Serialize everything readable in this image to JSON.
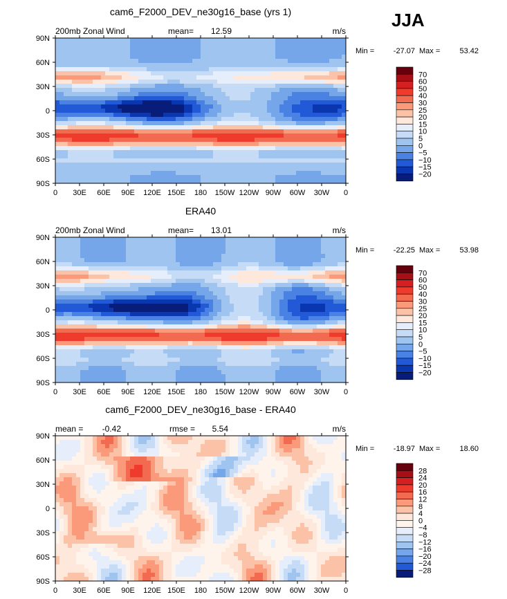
{
  "season": "JJA",
  "chart_data": [
    {
      "type": "heatmap",
      "title": "cam6_F2000_DEV_ne30g16_base (yrs 1)",
      "left_label": "200mb Zonal Wind",
      "center_label": "mean=",
      "center_value": "12.59",
      "units": "m/s",
      "stats": {
        "min_label": "Min =",
        "min": "-27.07",
        "max_label": "Max =",
        "max": "53.42"
      },
      "x_ticks": [
        "0",
        "30E",
        "60E",
        "90E",
        "120E",
        "150E",
        "180",
        "150W",
        "120W",
        "90W",
        "60W",
        "30W",
        "0"
      ],
      "y_ticks": [
        "90N",
        "60N",
        "30N",
        "0",
        "30S",
        "60S",
        "90S"
      ],
      "colorbar": {
        "labels": [
          "70",
          "60",
          "50",
          "40",
          "30",
          "25",
          "20",
          "15",
          "10",
          "5",
          "0",
          "−5",
          "−10",
          "−15",
          "−20"
        ],
        "colors": [
          "#67000d",
          "#a50f15",
          "#d42020",
          "#ef3b2c",
          "#f26a4f",
          "#fa9a7a",
          "#fcc2a8",
          "#fde8db",
          "#e5eefa",
          "#c6dbf5",
          "#9fc4f0",
          "#76a6ea",
          "#4a82e3",
          "#2159d6",
          "#0a36b0",
          "#081d7a"
        ]
      }
    },
    {
      "type": "heatmap",
      "title": "ERA40",
      "left_label": "200mb Zonal Wind",
      "center_label": "mean=",
      "center_value": "13.01",
      "units": "m/s",
      "stats": {
        "min_label": "Min =",
        "min": "-22.25",
        "max_label": "Max =",
        "max": "53.98"
      },
      "x_ticks": [
        "0",
        "30E",
        "60E",
        "90E",
        "120E",
        "150E",
        "180",
        "150W",
        "120W",
        "90W",
        "60W",
        "30W",
        "0"
      ],
      "y_ticks": [
        "90N",
        "60N",
        "30N",
        "0",
        "30S",
        "60S",
        "90S"
      ],
      "colorbar": {
        "labels": [
          "70",
          "60",
          "50",
          "40",
          "30",
          "25",
          "20",
          "15",
          "10",
          "5",
          "0",
          "−5",
          "−10",
          "−15",
          "−20"
        ],
        "colors": [
          "#67000d",
          "#a50f15",
          "#d42020",
          "#ef3b2c",
          "#f26a4f",
          "#fa9a7a",
          "#fcc2a8",
          "#fde8db",
          "#e5eefa",
          "#c6dbf5",
          "#9fc4f0",
          "#76a6ea",
          "#4a82e3",
          "#2159d6",
          "#0a36b0",
          "#081d7a"
        ]
      }
    },
    {
      "type": "heatmap",
      "title": "cam6_F2000_DEV_ne30g16_base - ERA40",
      "left_label": "mean =",
      "left_value": "-0.42",
      "center_label": "rmse =",
      "center_value": "5.54",
      "units": "m/s",
      "stats": {
        "min_label": "Min =",
        "min": "-18.97",
        "max_label": "Max =",
        "max": "18.60"
      },
      "x_ticks": [
        "0",
        "30E",
        "60E",
        "90E",
        "120E",
        "150E",
        "180",
        "150W",
        "120W",
        "90W",
        "60W",
        "30W",
        "0"
      ],
      "y_ticks": [
        "90N",
        "60N",
        "30N",
        "0",
        "30S",
        "60S",
        "90S"
      ],
      "colorbar": {
        "labels": [
          "28",
          "24",
          "20",
          "16",
          "12",
          "8",
          "4",
          "0",
          "−4",
          "−8",
          "−12",
          "−16",
          "−20",
          "−24",
          "−28"
        ],
        "colors": [
          "#67000d",
          "#a50f15",
          "#d42020",
          "#ef3b2c",
          "#f26a4f",
          "#fa9a7a",
          "#fcc2a8",
          "#fde8db",
          "#fff4ec",
          "#e5eefa",
          "#c6dbf5",
          "#9fc4f0",
          "#76a6ea",
          "#4a82e3",
          "#2159d6",
          "#081d7a"
        ]
      }
    }
  ]
}
